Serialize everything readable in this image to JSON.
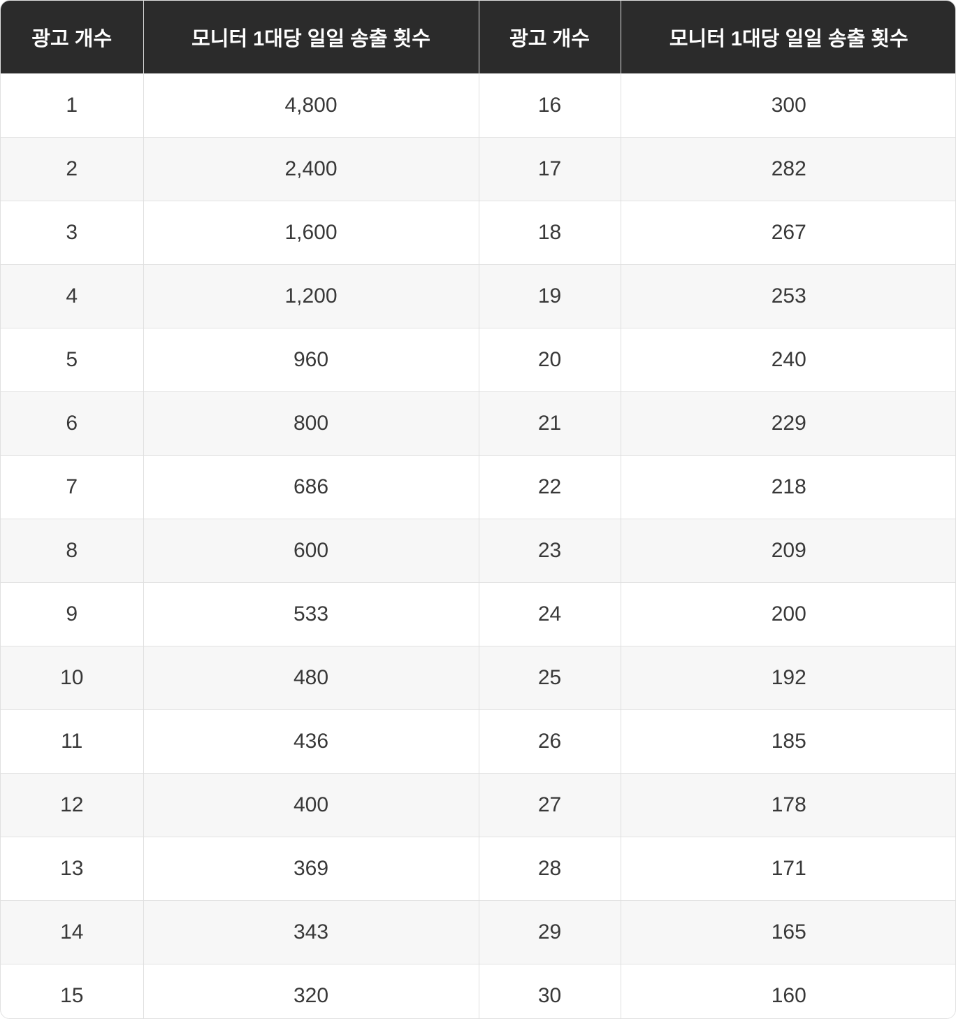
{
  "header": {
    "col1": "광고 개수",
    "col2": "모니터 1대당 일일 송출 횟수",
    "col3": "광고 개수",
    "col4": "모니터 1대당 일일 송출 횟수"
  },
  "rows": [
    {
      "c1": "1",
      "c2": "4,800",
      "c3": "16",
      "c4": "300"
    },
    {
      "c1": "2",
      "c2": "2,400",
      "c3": "17",
      "c4": "282"
    },
    {
      "c1": "3",
      "c2": "1,600",
      "c3": "18",
      "c4": "267"
    },
    {
      "c1": "4",
      "c2": "1,200",
      "c3": "19",
      "c4": "253"
    },
    {
      "c1": "5",
      "c2": "960",
      "c3": "20",
      "c4": "240"
    },
    {
      "c1": "6",
      "c2": "800",
      "c3": "21",
      "c4": "229"
    },
    {
      "c1": "7",
      "c2": "686",
      "c3": "22",
      "c4": "218"
    },
    {
      "c1": "8",
      "c2": "600",
      "c3": "23",
      "c4": "209"
    },
    {
      "c1": "9",
      "c2": "533",
      "c3": "24",
      "c4": "200"
    },
    {
      "c1": "10",
      "c2": "480",
      "c3": "25",
      "c4": "192"
    },
    {
      "c1": "11",
      "c2": "436",
      "c3": "26",
      "c4": "185"
    },
    {
      "c1": "12",
      "c2": "400",
      "c3": "27",
      "c4": "178"
    },
    {
      "c1": "13",
      "c2": "369",
      "c3": "28",
      "c4": "171"
    },
    {
      "c1": "14",
      "c2": "343",
      "c3": "29",
      "c4": "165"
    },
    {
      "c1": "15",
      "c2": "320",
      "c3": "30",
      "c4": "160"
    }
  ],
  "chart_data": {
    "type": "table",
    "columns": [
      "광고 개수",
      "모니터 1대당 일일 송출 횟수",
      "광고 개수",
      "모니터 1대당 일일 송출 횟수"
    ],
    "rows": [
      [
        1,
        4800,
        16,
        300
      ],
      [
        2,
        2400,
        17,
        282
      ],
      [
        3,
        1600,
        18,
        267
      ],
      [
        4,
        1200,
        19,
        253
      ],
      [
        5,
        960,
        20,
        240
      ],
      [
        6,
        800,
        21,
        229
      ],
      [
        7,
        686,
        22,
        218
      ],
      [
        8,
        600,
        23,
        209
      ],
      [
        9,
        533,
        24,
        200
      ],
      [
        10,
        480,
        25,
        192
      ],
      [
        11,
        436,
        26,
        185
      ],
      [
        12,
        400,
        27,
        178
      ],
      [
        13,
        369,
        28,
        171
      ],
      [
        14,
        343,
        29,
        165
      ],
      [
        15,
        320,
        30,
        160
      ]
    ]
  },
  "colors": {
    "header_bg": "#2b2b2b",
    "header_text": "#ffffff",
    "row_alt_bg": "#f7f7f7",
    "border": "#e0e0e0",
    "cell_text": "#383838"
  }
}
